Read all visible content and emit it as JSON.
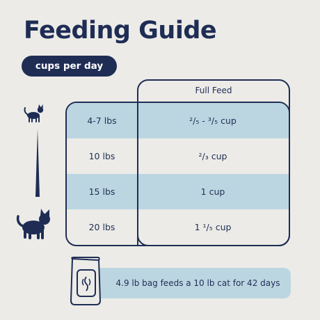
{
  "title": "Feeding Guide",
  "unit_pill": "cups per day",
  "column_header": "Full Feed",
  "rows": [
    {
      "weight": "4-7 lbs",
      "amount": "²/₅ - ³/₅ cup"
    },
    {
      "weight": "10 lbs",
      "amount": "²/₃ cup"
    },
    {
      "weight": "15 lbs",
      "amount": "1 cup"
    },
    {
      "weight": "20 lbs",
      "amount": "1 ¹/₅ cup"
    }
  ],
  "bag_note": "4.9 lb bag feeds a 10 lb cat for 42 days",
  "colors": {
    "navy": "#1f2d55",
    "light_blue": "#bcd6e1",
    "background": "#ecebe7"
  },
  "icons": [
    "small-cat-icon",
    "large-cat-icon",
    "food-bag-icon"
  ]
}
